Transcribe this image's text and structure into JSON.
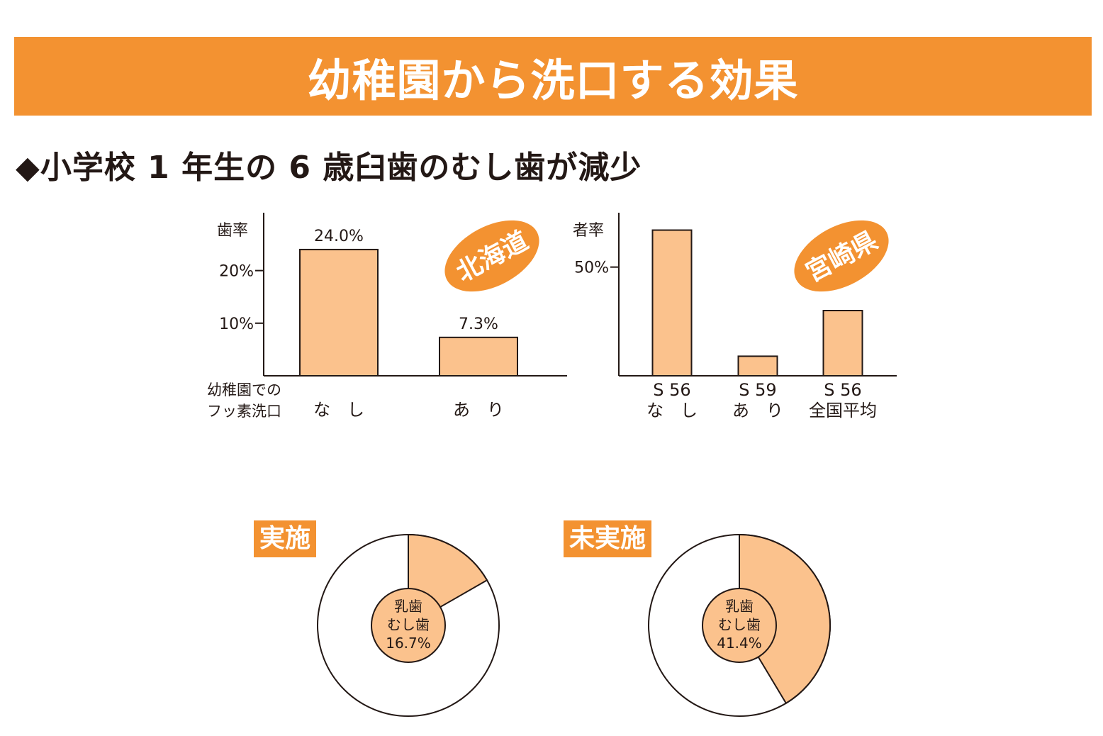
{
  "header": {
    "title": "幼稚園から洗口する効果"
  },
  "subtitle": "◆小学校 1 年生の 6 歳臼歯のむし歯が減少",
  "colors": {
    "orange": "#f39231",
    "bar": "#fbc28d",
    "line": "#231815"
  },
  "chart_data": [
    {
      "type": "bar",
      "region": "北海道",
      "ylabel": "歯率",
      "yticks": [
        "20%",
        "10%"
      ],
      "ytick_values": [
        20,
        10
      ],
      "ylim": [
        0,
        31
      ],
      "xlabel_lines": [
        "幼稚園での",
        "フッ素洗口"
      ],
      "categories": [
        "な　し",
        "あ　り"
      ],
      "values": [
        24.0,
        7.3
      ],
      "value_labels": [
        "24.0%",
        "7.3%"
      ]
    },
    {
      "type": "bar",
      "region": "宮崎県",
      "ylabel": "者率",
      "yticks": [
        "50%"
      ],
      "ytick_values": [
        50
      ],
      "ylim": [
        0,
        75
      ],
      "categories": [
        "S 56",
        "S 59",
        "S 56"
      ],
      "category_sublabels": [
        "な　し",
        "あ　り",
        "全国平均"
      ],
      "values": [
        67,
        9,
        30
      ]
    },
    {
      "type": "pie",
      "tag": "実施",
      "center_lines": [
        "乳歯",
        "むし歯",
        "16.7%"
      ],
      "value": 16.7
    },
    {
      "type": "pie",
      "tag": "未実施",
      "center_lines": [
        "乳歯",
        "むし歯",
        "41.4%"
      ],
      "value": 41.4
    }
  ]
}
